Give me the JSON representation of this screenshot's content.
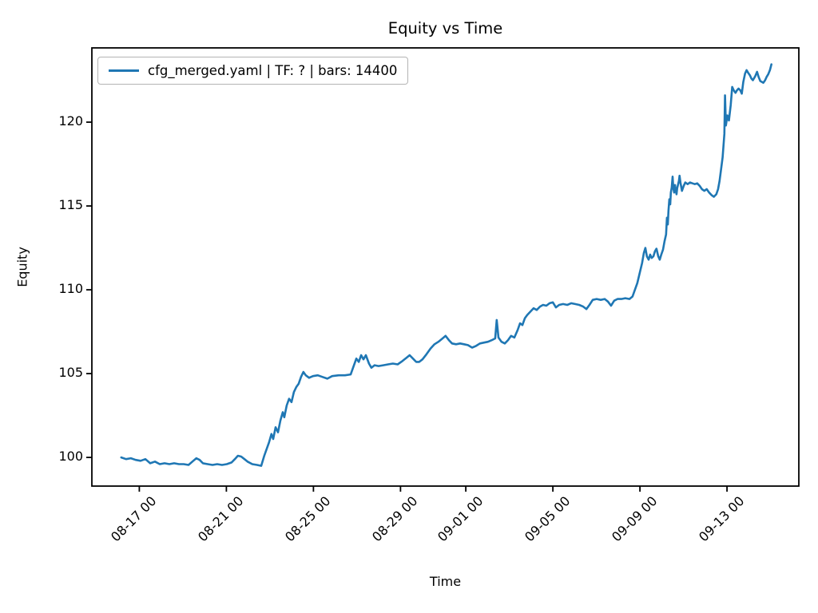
{
  "chart_data": {
    "type": "line",
    "title": "Equity vs Time",
    "xlabel": "Time",
    "ylabel": "Equity",
    "grid": false,
    "frame_color": "#000000",
    "legend": {
      "position": "upper left",
      "entries": [
        {
          "label": "cfg_merged.yaml | TF: ? | bars: 14400",
          "color": "#1f77b4"
        }
      ]
    },
    "x_axis": {
      "unit": "days (offset from first tick 08-17 00 = 1)",
      "lim": [
        -1.18,
        31.3
      ],
      "ticks": [
        {
          "label": "08-17 00",
          "t": 1
        },
        {
          "label": "08-21 00",
          "t": 5
        },
        {
          "label": "08-25 00",
          "t": 9
        },
        {
          "label": "08-29 00",
          "t": 13
        },
        {
          "label": "09-01 00",
          "t": 16
        },
        {
          "label": "09-05 00",
          "t": 20
        },
        {
          "label": "09-09 00",
          "t": 24
        },
        {
          "label": "09-13 00",
          "t": 28
        }
      ]
    },
    "y_axis": {
      "lim": [
        98.29,
        124.43
      ],
      "ticks": [
        100,
        105,
        110,
        115,
        120
      ]
    },
    "series": [
      {
        "name": "cfg_merged.yaml | TF: ? | bars: 14400",
        "color": "#1f77b4",
        "points": [
          [
            0.17,
            100.0
          ],
          [
            0.39,
            99.9
          ],
          [
            0.61,
            99.95
          ],
          [
            0.83,
            99.85
          ],
          [
            1.06,
            99.8
          ],
          [
            1.28,
            99.9
          ],
          [
            1.5,
            99.65
          ],
          [
            1.72,
            99.75
          ],
          [
            1.94,
            99.6
          ],
          [
            2.16,
            99.65
          ],
          [
            2.38,
            99.6
          ],
          [
            2.6,
            99.65
          ],
          [
            2.82,
            99.6
          ],
          [
            3.04,
            99.6
          ],
          [
            3.26,
            99.55
          ],
          [
            3.48,
            99.8
          ],
          [
            3.62,
            99.95
          ],
          [
            3.77,
            99.85
          ],
          [
            3.92,
            99.65
          ],
          [
            4.14,
            99.6
          ],
          [
            4.36,
            99.55
          ],
          [
            4.58,
            99.6
          ],
          [
            4.8,
            99.55
          ],
          [
            5.02,
            99.6
          ],
          [
            5.24,
            99.7
          ],
          [
            5.39,
            99.9
          ],
          [
            5.53,
            100.1
          ],
          [
            5.68,
            100.05
          ],
          [
            5.83,
            99.9
          ],
          [
            5.97,
            99.75
          ],
          [
            6.19,
            99.6
          ],
          [
            6.41,
            99.55
          ],
          [
            6.6,
            99.5
          ],
          [
            6.74,
            100.1
          ],
          [
            6.85,
            100.5
          ],
          [
            6.96,
            100.9
          ],
          [
            7.07,
            101.4
          ],
          [
            7.15,
            101.1
          ],
          [
            7.26,
            101.8
          ],
          [
            7.37,
            101.5
          ],
          [
            7.48,
            102.2
          ],
          [
            7.59,
            102.7
          ],
          [
            7.66,
            102.4
          ],
          [
            7.77,
            103.1
          ],
          [
            7.88,
            103.5
          ],
          [
            7.99,
            103.3
          ],
          [
            8.1,
            103.9
          ],
          [
            8.21,
            104.2
          ],
          [
            8.32,
            104.4
          ],
          [
            8.43,
            104.8
          ],
          [
            8.54,
            105.1
          ],
          [
            8.65,
            104.9
          ],
          [
            8.8,
            104.75
          ],
          [
            8.98,
            104.85
          ],
          [
            9.2,
            104.9
          ],
          [
            9.42,
            104.8
          ],
          [
            9.64,
            104.7
          ],
          [
            9.86,
            104.85
          ],
          [
            10.16,
            104.9
          ],
          [
            10.45,
            104.9
          ],
          [
            10.71,
            104.95
          ],
          [
            10.86,
            105.5
          ],
          [
            10.97,
            105.9
          ],
          [
            11.08,
            105.7
          ],
          [
            11.19,
            106.1
          ],
          [
            11.3,
            105.85
          ],
          [
            11.41,
            106.1
          ],
          [
            11.55,
            105.6
          ],
          [
            11.66,
            105.35
          ],
          [
            11.81,
            105.5
          ],
          [
            11.99,
            105.45
          ],
          [
            12.21,
            105.5
          ],
          [
            12.43,
            105.55
          ],
          [
            12.65,
            105.6
          ],
          [
            12.87,
            105.55
          ],
          [
            13.09,
            105.75
          ],
          [
            13.28,
            105.95
          ],
          [
            13.42,
            106.1
          ],
          [
            13.57,
            105.9
          ],
          [
            13.72,
            105.7
          ],
          [
            13.86,
            105.7
          ],
          [
            14.01,
            105.85
          ],
          [
            14.19,
            106.15
          ],
          [
            14.38,
            106.5
          ],
          [
            14.56,
            106.75
          ],
          [
            14.74,
            106.9
          ],
          [
            14.93,
            107.1
          ],
          [
            15.07,
            107.25
          ],
          [
            15.22,
            107.0
          ],
          [
            15.37,
            106.8
          ],
          [
            15.55,
            106.75
          ],
          [
            15.74,
            106.8
          ],
          [
            15.92,
            106.75
          ],
          [
            16.1,
            106.7
          ],
          [
            16.29,
            106.55
          ],
          [
            16.47,
            106.65
          ],
          [
            16.65,
            106.8
          ],
          [
            16.84,
            106.85
          ],
          [
            17.02,
            106.9
          ],
          [
            17.2,
            107.0
          ],
          [
            17.35,
            107.1
          ],
          [
            17.42,
            108.2
          ],
          [
            17.5,
            107.15
          ],
          [
            17.64,
            106.9
          ],
          [
            17.79,
            106.8
          ],
          [
            17.94,
            107.0
          ],
          [
            18.08,
            107.25
          ],
          [
            18.23,
            107.15
          ],
          [
            18.38,
            107.6
          ],
          [
            18.49,
            108.0
          ],
          [
            18.6,
            107.9
          ],
          [
            18.71,
            108.3
          ],
          [
            18.82,
            108.5
          ],
          [
            18.97,
            108.7
          ],
          [
            19.11,
            108.9
          ],
          [
            19.26,
            108.8
          ],
          [
            19.41,
            109.0
          ],
          [
            19.55,
            109.1
          ],
          [
            19.7,
            109.05
          ],
          [
            19.85,
            109.2
          ],
          [
            20.0,
            109.25
          ],
          [
            20.14,
            108.95
          ],
          [
            20.29,
            109.1
          ],
          [
            20.47,
            109.15
          ],
          [
            20.66,
            109.1
          ],
          [
            20.84,
            109.2
          ],
          [
            21.02,
            109.15
          ],
          [
            21.21,
            109.1
          ],
          [
            21.39,
            109.0
          ],
          [
            21.54,
            108.85
          ],
          [
            21.68,
            109.1
          ],
          [
            21.83,
            109.4
          ],
          [
            22.01,
            109.45
          ],
          [
            22.2,
            109.4
          ],
          [
            22.38,
            109.45
          ],
          [
            22.53,
            109.3
          ],
          [
            22.67,
            109.05
          ],
          [
            22.82,
            109.35
          ],
          [
            22.97,
            109.45
          ],
          [
            23.15,
            109.45
          ],
          [
            23.33,
            109.5
          ],
          [
            23.52,
            109.45
          ],
          [
            23.66,
            109.6
          ],
          [
            23.77,
            110.0
          ],
          [
            23.88,
            110.4
          ],
          [
            23.99,
            111.0
          ],
          [
            24.1,
            111.6
          ],
          [
            24.18,
            112.2
          ],
          [
            24.25,
            112.5
          ],
          [
            24.32,
            112.0
          ],
          [
            24.4,
            111.8
          ],
          [
            24.47,
            112.1
          ],
          [
            24.54,
            111.9
          ],
          [
            24.62,
            112.0
          ],
          [
            24.69,
            112.3
          ],
          [
            24.76,
            112.45
          ],
          [
            24.84,
            112.0
          ],
          [
            24.91,
            111.8
          ],
          [
            24.98,
            112.1
          ],
          [
            25.06,
            112.4
          ],
          [
            25.13,
            112.9
          ],
          [
            25.2,
            113.3
          ],
          [
            25.24,
            114.3
          ],
          [
            25.28,
            113.9
          ],
          [
            25.31,
            114.7
          ],
          [
            25.35,
            115.4
          ],
          [
            25.39,
            115.1
          ],
          [
            25.42,
            115.8
          ],
          [
            25.46,
            116.1
          ],
          [
            25.5,
            116.75
          ],
          [
            25.53,
            116.1
          ],
          [
            25.57,
            115.8
          ],
          [
            25.61,
            116.25
          ],
          [
            25.64,
            115.95
          ],
          [
            25.68,
            115.7
          ],
          [
            25.71,
            116.05
          ],
          [
            25.79,
            116.5
          ],
          [
            25.82,
            116.8
          ],
          [
            25.86,
            116.4
          ],
          [
            25.93,
            115.9
          ],
          [
            26.01,
            116.2
          ],
          [
            26.08,
            116.4
          ],
          [
            26.19,
            116.3
          ],
          [
            26.3,
            116.4
          ],
          [
            26.41,
            116.35
          ],
          [
            26.52,
            116.3
          ],
          [
            26.63,
            116.35
          ],
          [
            26.74,
            116.2
          ],
          [
            26.85,
            116.0
          ],
          [
            26.96,
            115.9
          ],
          [
            27.07,
            116.0
          ],
          [
            27.18,
            115.8
          ],
          [
            27.29,
            115.65
          ],
          [
            27.4,
            115.55
          ],
          [
            27.51,
            115.7
          ],
          [
            27.59,
            116.0
          ],
          [
            27.66,
            116.5
          ],
          [
            27.73,
            117.2
          ],
          [
            27.8,
            117.9
          ],
          [
            27.88,
            119.3
          ],
          [
            27.91,
            121.6
          ],
          [
            27.95,
            119.8
          ],
          [
            28.02,
            120.4
          ],
          [
            28.09,
            120.1
          ],
          [
            28.17,
            121.0
          ],
          [
            28.24,
            122.1
          ],
          [
            28.31,
            121.9
          ],
          [
            28.39,
            121.75
          ],
          [
            28.46,
            121.9
          ],
          [
            28.53,
            122.0
          ],
          [
            28.61,
            121.9
          ],
          [
            28.68,
            121.7
          ],
          [
            28.75,
            122.4
          ],
          [
            28.83,
            122.9
          ],
          [
            28.9,
            123.1
          ],
          [
            28.97,
            122.95
          ],
          [
            29.05,
            122.8
          ],
          [
            29.12,
            122.6
          ],
          [
            29.19,
            122.5
          ],
          [
            29.3,
            122.75
          ],
          [
            29.38,
            123.0
          ],
          [
            29.45,
            122.7
          ],
          [
            29.53,
            122.45
          ],
          [
            29.6,
            122.4
          ],
          [
            29.67,
            122.35
          ],
          [
            29.75,
            122.5
          ],
          [
            29.82,
            122.7
          ],
          [
            29.89,
            122.85
          ],
          [
            29.97,
            123.1
          ],
          [
            30.04,
            123.45
          ]
        ]
      }
    ]
  }
}
